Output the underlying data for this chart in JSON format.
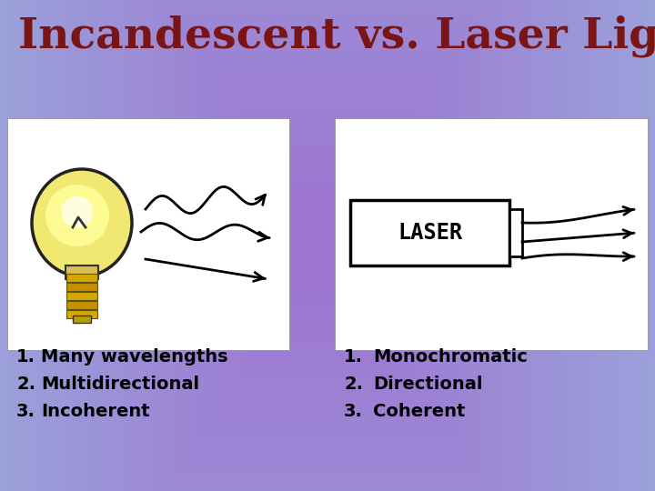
{
  "title": "Incandescent vs. Laser Light",
  "title_color": "#7B1515",
  "title_fontsize": 34,
  "title_fontstyle": "normal",
  "title_fontweight": "bold",
  "left_items_nums": [
    "1.",
    "2.",
    "3."
  ],
  "left_items_text": [
    "Many wavelengths",
    "Multidirectional",
    "Incoherent"
  ],
  "right_items_nums": [
    "1.",
    "2.",
    "3."
  ],
  "right_items_text": [
    "Monochromatic",
    "Directional",
    "Coherent"
  ],
  "laser_label": "LASER",
  "list_fontsize": 14,
  "list_fontweight": "bold"
}
